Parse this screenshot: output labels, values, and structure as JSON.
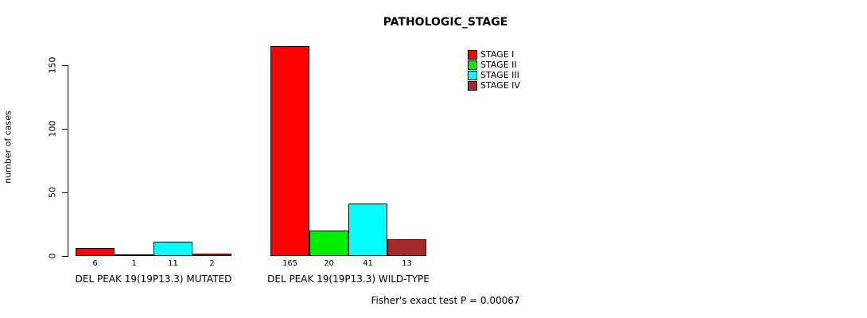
{
  "chart_data": {
    "type": "bar",
    "title": "PATHOLOGIC_STAGE",
    "ylabel": "number of cases",
    "xlabel": "",
    "ylim": [
      0,
      165
    ],
    "yticks": [
      0,
      50,
      100,
      150
    ],
    "grid": false,
    "legend_position": "top-right",
    "categories": [
      "DEL PEAK 19(19P13.3) MUTATED",
      "DEL PEAK 19(19P13.3) WILD-TYPE"
    ],
    "series": [
      {
        "name": "STAGE I",
        "color": "#ff0000",
        "values": [
          6,
          165
        ]
      },
      {
        "name": "STAGE II",
        "color": "#00ee00",
        "values": [
          1,
          20
        ]
      },
      {
        "name": "STAGE III",
        "color": "#00ffff",
        "values": [
          11,
          41
        ]
      },
      {
        "name": "STAGE IV",
        "color": "#a52a2a",
        "values": [
          2,
          13
        ]
      }
    ],
    "annotation": "Fisher's exact test P = 0.00067"
  }
}
